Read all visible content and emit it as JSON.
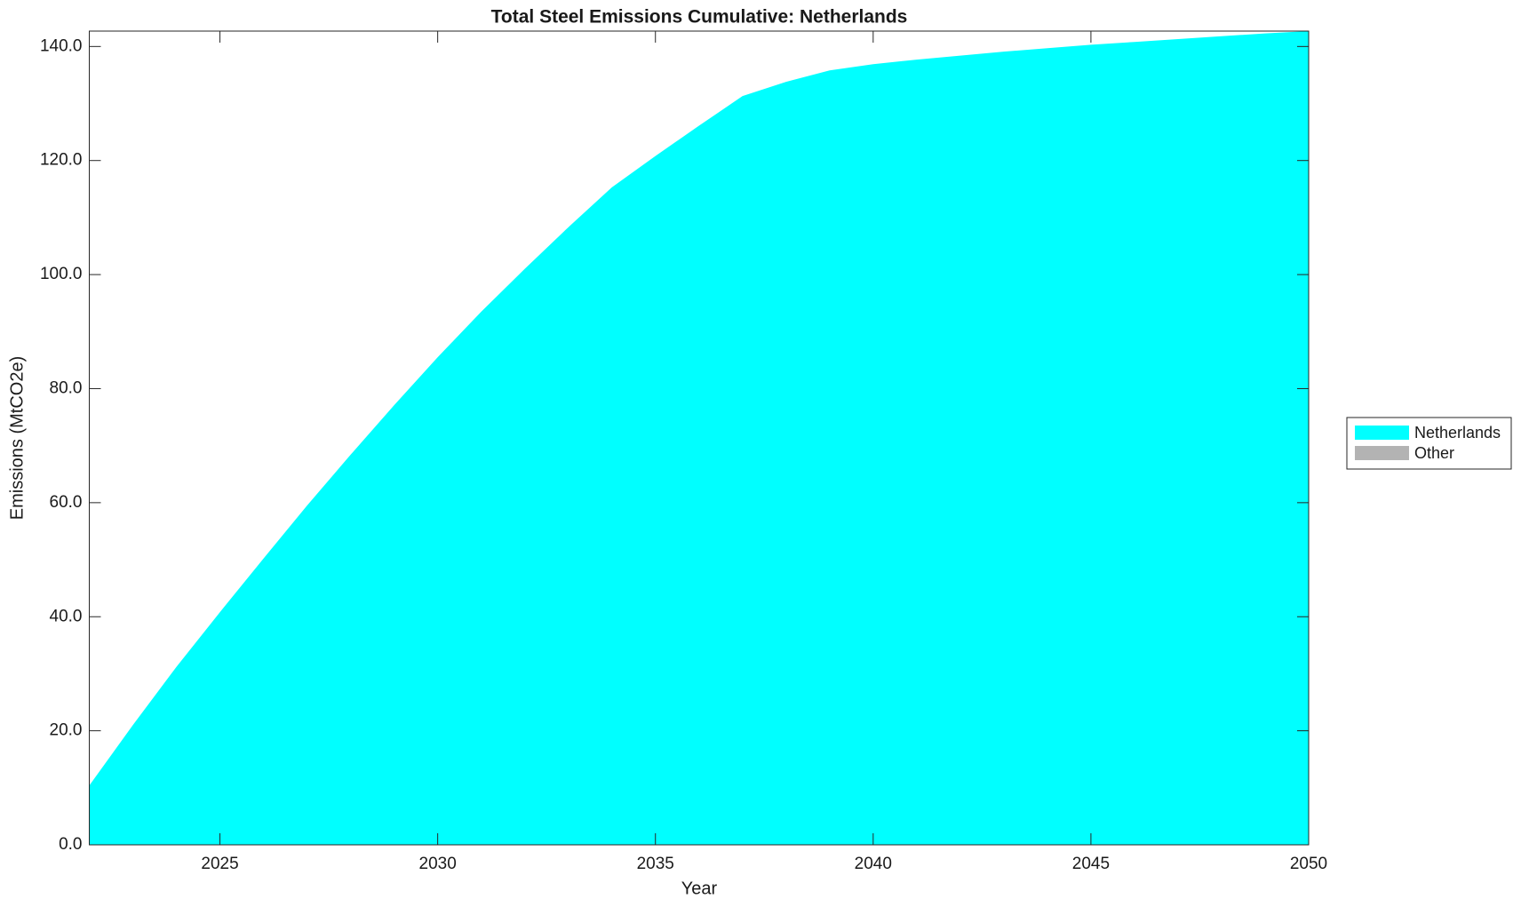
{
  "chart_data": {
    "type": "area",
    "title": "Total Steel Emissions Cumulative: Netherlands",
    "xlabel": "Year",
    "ylabel": "Emissions (MtCO2e)",
    "x": [
      2022,
      2023,
      2024,
      2025,
      2026,
      2027,
      2028,
      2029,
      2030,
      2031,
      2032,
      2033,
      2034,
      2035,
      2036,
      2037,
      2038,
      2039,
      2040,
      2041,
      2042,
      2043,
      2044,
      2045,
      2046,
      2047,
      2048,
      2049,
      2050
    ],
    "series": [
      {
        "name": "Netherlands",
        "color": "#00ffff",
        "values": [
          10.4,
          21,
          31.2,
          40.8,
          50.2,
          59.5,
          68.4,
          77.1,
          85.5,
          93.5,
          101,
          108.3,
          115.3,
          120.8,
          126.1,
          131.3,
          133.8,
          135.8,
          136.9,
          137.7,
          138.4,
          139.1,
          139.7,
          140.3,
          140.8,
          141.3,
          141.8,
          142.3,
          142.7
        ]
      },
      {
        "name": "Other",
        "color": "#b3b3b3",
        "values": [
          0,
          0,
          0,
          0,
          0,
          0,
          0,
          0,
          0,
          0,
          0,
          0,
          0,
          0,
          0,
          0,
          0,
          0,
          0,
          0,
          0,
          0,
          0,
          0,
          0,
          0,
          0,
          0,
          0
        ]
      }
    ],
    "xlim": [
      2022,
      2050
    ],
    "xticks": [
      2025,
      2030,
      2035,
      2040,
      2045,
      2050
    ],
    "ylim": [
      0,
      142.7
    ],
    "yticks": [
      {
        "value": 0,
        "label": "0.0"
      },
      {
        "value": 20,
        "label": "20.0"
      },
      {
        "value": 40,
        "label": "40.0"
      },
      {
        "value": 60,
        "label": "60.0"
      },
      {
        "value": 80,
        "label": "80.0"
      },
      {
        "value": 100,
        "label": "100.0"
      },
      {
        "value": 120,
        "label": "120.0"
      },
      {
        "value": 140,
        "label": "140.0"
      }
    ],
    "stacked": true,
    "grid": false,
    "legend": "right"
  }
}
